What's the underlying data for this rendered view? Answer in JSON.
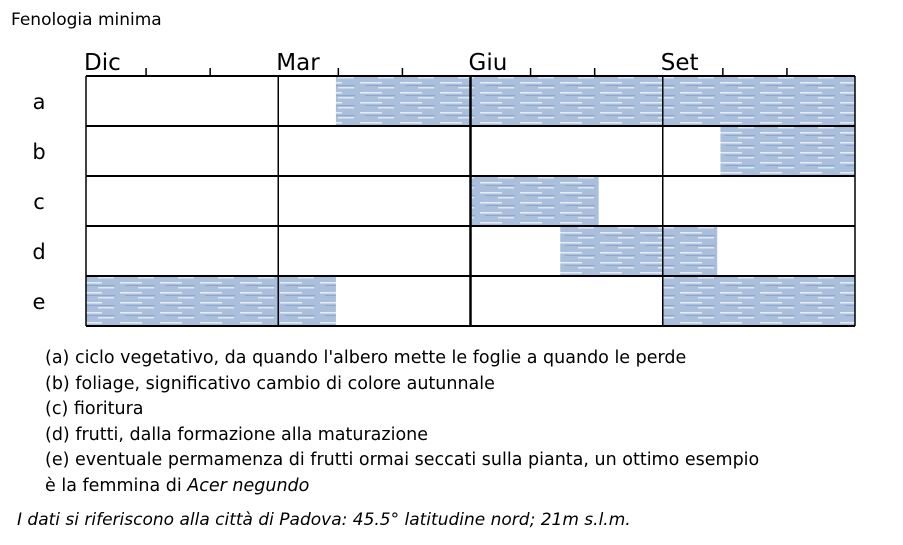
{
  "title": "Fenologia minima",
  "chart_data": {
    "type": "gantt",
    "x_unit": "months starting from December",
    "xlim": [
      0,
      12
    ],
    "month_labels": [
      "Dic",
      "Mar",
      "Giu",
      "Set"
    ],
    "month_label_positions": [
      0,
      3,
      6,
      9
    ],
    "rows": [
      {
        "label": "a",
        "segments": [
          [
            3.9,
            12
          ]
        ]
      },
      {
        "label": "b",
        "segments": [
          [
            9.9,
            12
          ]
        ]
      },
      {
        "label": "c",
        "segments": [
          [
            6,
            8
          ]
        ]
      },
      {
        "label": "d",
        "segments": [
          [
            7.4,
            9.85
          ]
        ]
      },
      {
        "label": "e",
        "segments": [
          [
            0,
            3.9
          ],
          [
            9,
            12
          ]
        ]
      }
    ],
    "bar_color": "#a9bcd9",
    "grid": true
  },
  "legend": [
    "(a) ciclo vegetativo, da quando l'albero mette le foglie a quando le perde",
    "(b) foliage, significativo cambio di colore autunnale",
    "(c) fioritura",
    "(d) frutti, dalla formazione alla maturazione",
    "(e) eventuale permamenza di frutti ormai seccati sulla pianta, un ottimo esempio"
  ],
  "legend_last_prefix": "è la femmina di ",
  "legend_last_species": "Acer negundo",
  "note": "I dati si riferiscono alla città di Padova: 45.5° latitudine nord; 21m s.l.m."
}
